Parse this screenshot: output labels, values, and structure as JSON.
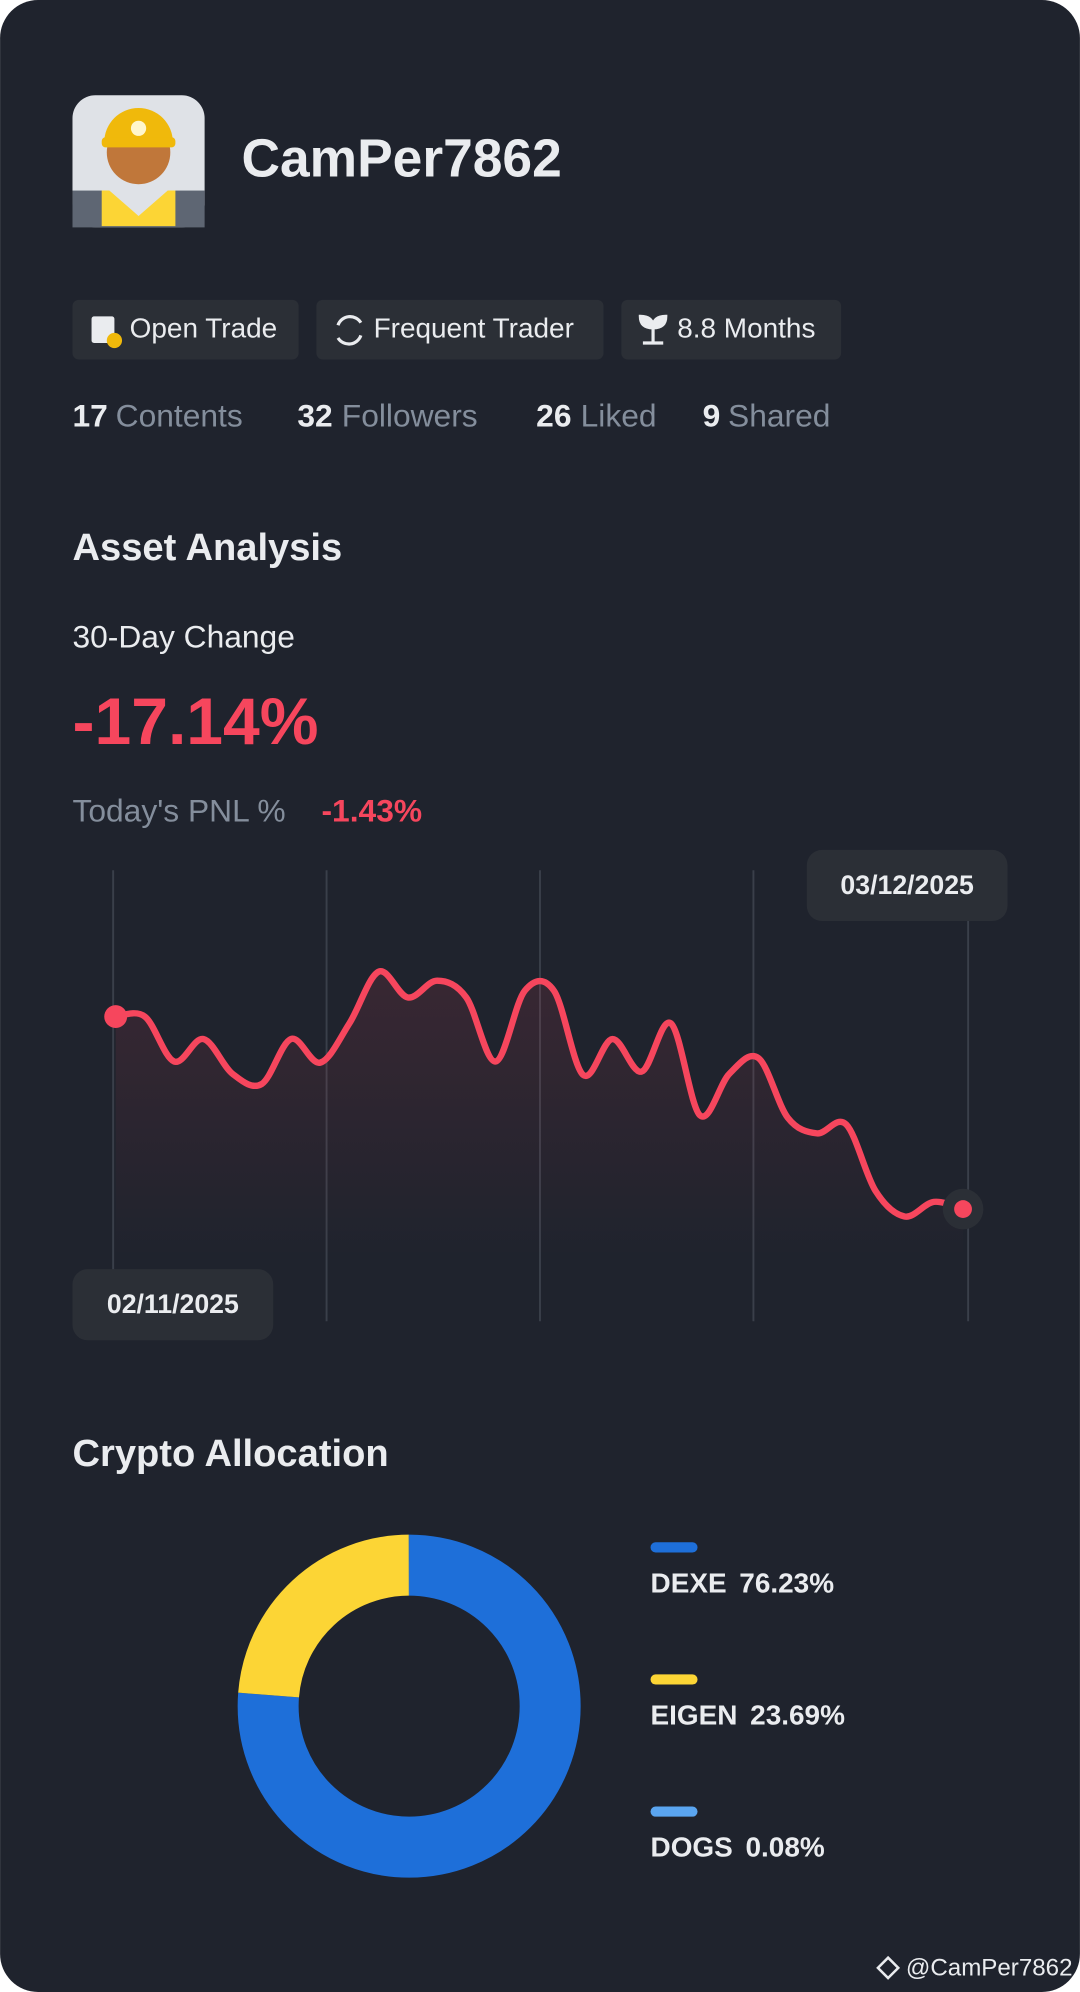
{
  "profile": {
    "username": "CamPer7862"
  },
  "tags": [
    "Open Trade",
    "Frequent Trader",
    "8.8 Months"
  ],
  "stats": [
    {
      "count": "17",
      "label": "Contents"
    },
    {
      "count": "32",
      "label": "Followers"
    },
    {
      "count": "26",
      "label": "Liked"
    },
    {
      "count": "9",
      "label": "Shared"
    }
  ],
  "asset_analysis": {
    "title": "Asset Analysis",
    "period_label": "30-Day Change",
    "change": "-17.14%",
    "pnl_label": "Today's PNL %",
    "pnl": "-1.43%"
  },
  "allocation_title": "Crypto Allocation",
  "watermark": "@CamPer7862",
  "chart_data": [
    {
      "type": "line",
      "categories": [
        "02/11/2025",
        null,
        null,
        null,
        null,
        null,
        null,
        null,
        null,
        null,
        null,
        null,
        null,
        null,
        null,
        null,
        null,
        null,
        null,
        null,
        null,
        null,
        null,
        null,
        null,
        null,
        null,
        null,
        null,
        "03/12/2025"
      ],
      "values": [
        0,
        0,
        -4.0,
        -2.0,
        -5.1,
        -6.0,
        -2.0,
        -4.1,
        -0.6,
        4.0,
        1.7,
        3.2,
        1.7,
        -4.0,
        2.3,
        2.3,
        -5.2,
        -2.0,
        -4.9,
        -0.6,
        -8.8,
        -5.1,
        -3.7,
        -9.0,
        -10.4,
        -9.6,
        -15.5,
        -17.8,
        -16.5,
        -17.14
      ],
      "color": "#f6465d",
      "ylim": [
        -20,
        5
      ]
    },
    {
      "type": "donut",
      "categories": [
        "DEXE",
        "EIGEN",
        "DOGS"
      ],
      "values": [
        76.23,
        23.69,
        0.08
      ],
      "value_labels": [
        "76.23%",
        "23.69%",
        "0.08%"
      ],
      "colors": [
        "#1e6fd9",
        "#fcd535",
        "#5aa5f0"
      ]
    }
  ]
}
